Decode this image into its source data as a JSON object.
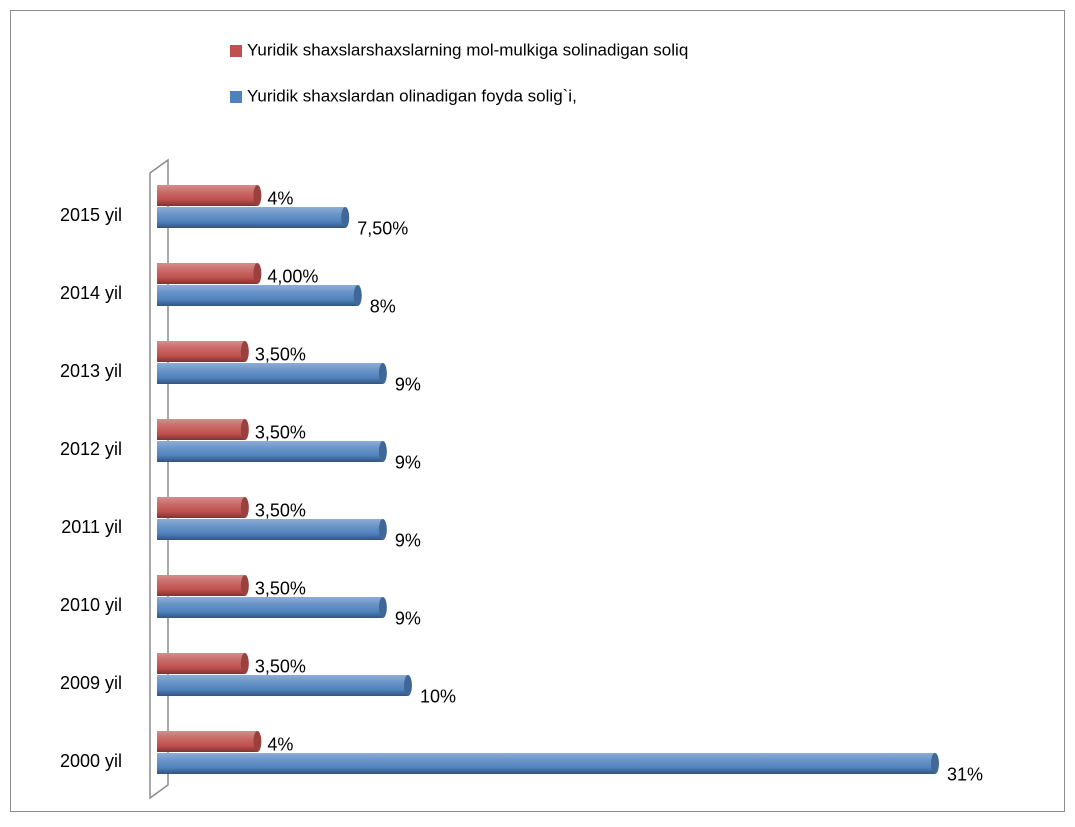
{
  "chart_data": {
    "type": "barh",
    "categories": [
      "2000 yil",
      "2009 yil",
      "2010 yil",
      "2011 yil",
      "2012 yil",
      "2013 yil",
      "2014 yil",
      "2015 yil"
    ],
    "series": [
      {
        "name": "Yuridik shaxslarshaxslarning mol-mulkiga solinadigan soliq",
        "color": "#c0504d",
        "values": [
          4,
          3.5,
          3.5,
          3.5,
          3.5,
          3.5,
          4,
          4
        ],
        "value_labels": [
          "4%",
          "3,50%",
          "3,50%",
          "3,50%",
          "3,50%",
          "3,50%",
          "4,00%",
          "4%"
        ]
      },
      {
        "name": "Yuridik shaxslardan olinadigan foyda solig`i,",
        "color": "#4f81bd",
        "values": [
          31,
          10,
          9,
          9,
          9,
          9,
          8,
          7.5
        ],
        "value_labels": [
          "31%",
          "10%",
          "9%",
          "9%",
          "9%",
          "9%",
          "8%",
          "7,50%"
        ]
      }
    ],
    "legend": "top"
  }
}
